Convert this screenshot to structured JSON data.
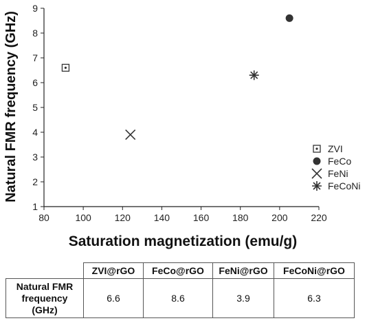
{
  "chart_data": {
    "type": "scatter",
    "xlabel": "Saturation magnetization (emu/g)",
    "ylabel": "Natural FMR frequency (GHz)",
    "xlim": [
      80,
      220
    ],
    "ylim": [
      1,
      9
    ],
    "xticks": [
      80,
      100,
      120,
      140,
      160,
      180,
      200,
      220
    ],
    "yticks": [
      1,
      2,
      3,
      4,
      5,
      6,
      7,
      8,
      9
    ],
    "grid": false,
    "legend_position": "lower-right",
    "series": [
      {
        "name": "ZVI",
        "marker": "square-dot",
        "x": [
          91
        ],
        "y": [
          6.6
        ]
      },
      {
        "name": "FeCo",
        "marker": "filled-circle",
        "x": [
          205
        ],
        "y": [
          8.6
        ]
      },
      {
        "name": "FeNi",
        "marker": "cross",
        "x": [
          124
        ],
        "y": [
          3.9
        ]
      },
      {
        "name": "FeCoNi",
        "marker": "asterisk",
        "x": [
          187
        ],
        "y": [
          6.3
        ]
      }
    ]
  },
  "table": {
    "columns": [
      "ZVI@rGO",
      "FeCo@rGO",
      "FeNi@rGO",
      "FeCoNi@rGO"
    ],
    "row_label_lines": [
      "Natural FMR",
      "frequency",
      "(GHz)"
    ],
    "values": [
      "6.6",
      "8.6",
      "3.9",
      "6.3"
    ]
  },
  "colors": {
    "marker": "#333333",
    "axis": "#222222"
  }
}
